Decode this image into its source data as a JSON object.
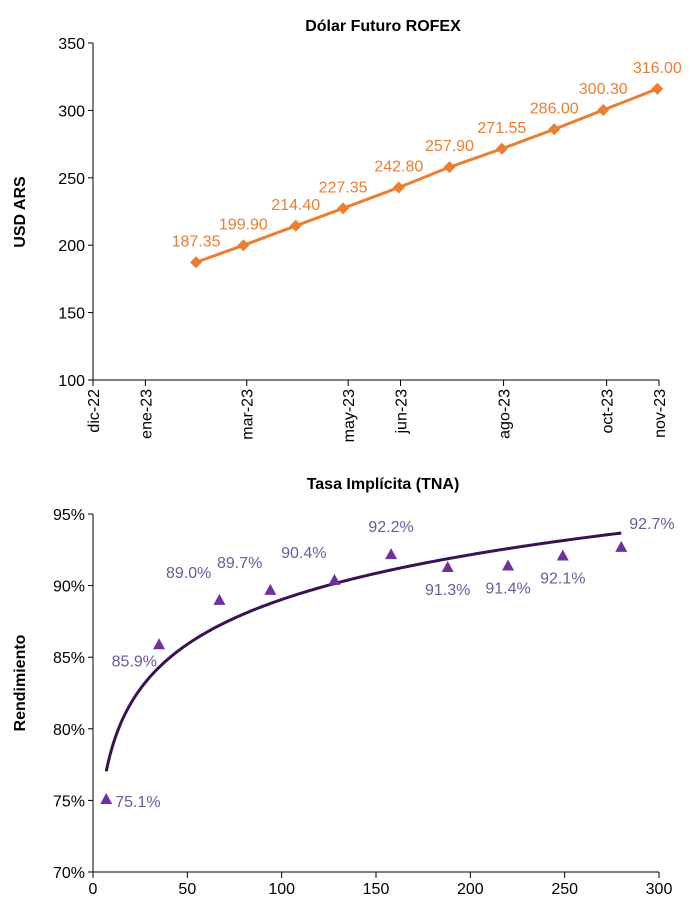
{
  "chart_data": [
    {
      "type": "line",
      "title": "Dólar Futuro ROFEX",
      "ylabel": "USD ARS",
      "xlabel": "",
      "ylim": [
        100,
        350
      ],
      "yticks": [
        100,
        150,
        200,
        250,
        300,
        350
      ],
      "x_tick_labels": [
        "dic-22",
        "ene-23",
        "mar-23",
        "may-23",
        "jun-23",
        "ago-23",
        "oct-23",
        "nov-23"
      ],
      "x": [
        "2023-01-31",
        "2023-02-28",
        "2023-03-31",
        "2023-04-28",
        "2023-05-31",
        "2023-06-30",
        "2023-07-31",
        "2023-08-31",
        "2023-09-29",
        "2023-10-31"
      ],
      "values": [
        187.35,
        199.9,
        214.4,
        227.35,
        242.8,
        257.9,
        271.55,
        286.0,
        300.3,
        316.0
      ],
      "labels": [
        "187.35",
        "199.90",
        "214.40",
        "227.35",
        "242.80",
        "257.90",
        "271.55",
        "286.00",
        "300.30",
        "316.00"
      ],
      "color": "#ed7d31",
      "marker": "diamond",
      "grid": false,
      "legend": "none"
    },
    {
      "type": "scatter",
      "title": "Tasa Implícita (TNA)",
      "ylabel": "Rendimiento",
      "xlabel": "",
      "xlim": [
        0,
        300
      ],
      "ylim": [
        0.7,
        0.95
      ],
      "xticks": [
        0,
        50,
        100,
        150,
        200,
        250,
        300
      ],
      "yticks": [
        "70%",
        "75%",
        "80%",
        "85%",
        "90%",
        "95%"
      ],
      "x": [
        7,
        35,
        67,
        94,
        128,
        158,
        188,
        220,
        249,
        280
      ],
      "values": [
        0.751,
        0.859,
        0.89,
        0.897,
        0.904,
        0.922,
        0.913,
        0.914,
        0.921,
        0.927
      ],
      "labels": [
        "75.1%",
        "85.9%",
        "89.0%",
        "89.7%",
        "90.4%",
        "92.2%",
        "91.3%",
        "91.4%",
        "92.1%",
        "92.7%"
      ],
      "marker": "triangle",
      "color": "#7030a0",
      "label_color": "#6b5b9a",
      "trendline": {
        "type": "logarithmic",
        "color": "#3b1154",
        "x_from": 7,
        "x_to": 280
      },
      "grid": false,
      "legend": "none"
    }
  ]
}
